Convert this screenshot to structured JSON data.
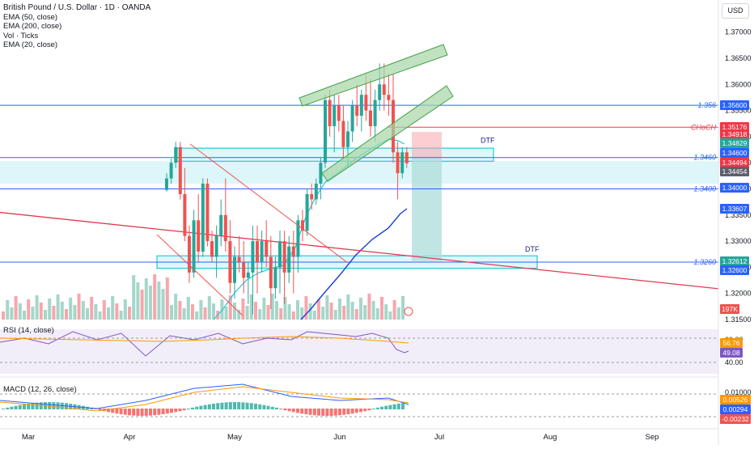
{
  "header": {
    "title": "British Pound / U.S. Dollar · 1D · OANDA",
    "indicators": [
      "EMA (50, close)",
      "EMA (200, close)",
      "Vol · Ticks",
      "EMA (20, close)"
    ],
    "currency_button": "USD"
  },
  "chart_data": {
    "type": "candlestick",
    "symbol": "GBPUSD",
    "timeframe": "1D",
    "x_tick_labels": [
      "Mar",
      "Apr",
      "May",
      "Jun",
      "Jul",
      "Aug",
      "Sep"
    ],
    "y_tick_labels": [
      "1.37000",
      "1.36500",
      "1.36000",
      "1.35500",
      "1.35000",
      "1.34500",
      "1.34000",
      "1.33500",
      "1.33000",
      "1.32500",
      "1.32000",
      "1.31500"
    ],
    "ylim": [
      1.315,
      1.373
    ],
    "price_lines": [
      {
        "value": 1.356,
        "label": "1.356",
        "color": "#2962ff"
      },
      {
        "value": 1.346,
        "label": "1.3460",
        "color": "#2962ff"
      },
      {
        "value": 1.34,
        "label": "1.3400",
        "color": "#2962ff"
      },
      {
        "value": 1.326,
        "label": "1.3260",
        "color": "#2962ff"
      }
    ],
    "choch_label": "CHoCH",
    "zone_labels": [
      "DTF",
      "DTF"
    ],
    "price_badges": [
      {
        "text": "1.35600",
        "color": "#2962ff"
      },
      {
        "text": "1.35176",
        "color": "#f23645"
      },
      {
        "text": "1.34918",
        "color": "#f23645"
      },
      {
        "text": "1.34829",
        "color": "#26a69a"
      },
      {
        "text": "1.34600",
        "color": "#2962ff"
      },
      {
        "text": "1.34494",
        "color": "#f23645"
      },
      {
        "text": "1.34454",
        "color": "#5d606b"
      },
      {
        "text": "1.34000",
        "color": "#2962ff"
      },
      {
        "text": "1.33607",
        "color": "#2962ff"
      },
      {
        "text": "1.32612",
        "color": "#26a69a"
      },
      {
        "text": "1.32600",
        "color": "#2962ff"
      }
    ],
    "volume_badge": "197K",
    "rsi": {
      "label": "RSI (14, close)",
      "y_tick_labels": [
        "60.00",
        "40.00"
      ],
      "badges": [
        "56.76",
        "49.08"
      ]
    },
    "macd": {
      "label": "MACD (12, 26, close)",
      "y_tick_labels": [
        "0.01000",
        "-0.00232"
      ],
      "badges": [
        "0.00526",
        "0.00294",
        "-0.00232"
      ]
    },
    "candles": [
      [
        1.3398,
        1.343,
        1.3395,
        1.342
      ],
      [
        1.342,
        1.3458,
        1.341,
        1.345
      ],
      [
        1.345,
        1.349,
        1.344,
        1.348
      ],
      [
        1.348,
        1.349,
        1.338,
        1.339
      ],
      [
        1.339,
        1.344,
        1.33,
        1.331
      ],
      [
        1.331,
        1.333,
        1.322,
        1.324
      ],
      [
        1.324,
        1.336,
        1.323,
        1.334
      ],
      [
        1.334,
        1.339,
        1.326,
        1.328
      ],
      [
        1.328,
        1.342,
        1.327,
        1.341
      ],
      [
        1.341,
        1.342,
        1.329,
        1.33
      ],
      [
        1.33,
        1.332,
        1.326,
        1.327
      ],
      [
        1.327,
        1.333,
        1.323,
        1.331
      ],
      [
        1.331,
        1.338,
        1.329,
        1.335
      ],
      [
        1.335,
        1.342,
        1.328,
        1.33
      ],
      [
        1.33,
        1.334,
        1.32,
        1.322
      ],
      [
        1.322,
        1.329,
        1.319,
        1.327
      ],
      [
        1.327,
        1.331,
        1.324,
        1.326
      ],
      [
        1.326,
        1.33,
        1.32,
        1.323
      ],
      [
        1.323,
        1.326,
        1.318,
        1.324
      ],
      [
        1.324,
        1.333,
        1.316,
        1.33
      ],
      [
        1.33,
        1.333,
        1.32,
        1.326
      ],
      [
        1.326,
        1.332,
        1.324,
        1.33
      ],
      [
        1.33,
        1.334,
        1.325,
        1.327
      ],
      [
        1.327,
        1.331,
        1.317,
        1.321
      ],
      [
        1.321,
        1.327,
        1.319,
        1.325
      ],
      [
        1.325,
        1.332,
        1.32,
        1.33
      ],
      [
        1.33,
        1.332,
        1.318,
        1.324
      ],
      [
        1.324,
        1.331,
        1.322,
        1.329
      ],
      [
        1.329,
        1.332,
        1.32,
        1.327
      ],
      [
        1.327,
        1.335,
        1.324,
        1.334
      ],
      [
        1.334,
        1.336,
        1.33,
        1.332
      ],
      [
        1.332,
        1.34,
        1.331,
        1.339
      ],
      [
        1.339,
        1.341,
        1.336,
        1.338
      ],
      [
        1.338,
        1.342,
        1.337,
        1.341
      ],
      [
        1.341,
        1.346,
        1.338,
        1.345
      ],
      [
        1.345,
        1.358,
        1.344,
        1.357
      ],
      [
        1.357,
        1.359,
        1.35,
        1.352
      ],
      [
        1.352,
        1.358,
        1.347,
        1.356
      ],
      [
        1.356,
        1.358,
        1.351,
        1.353
      ],
      [
        1.353,
        1.356,
        1.346,
        1.348
      ],
      [
        1.348,
        1.353,
        1.344,
        1.351
      ],
      [
        1.351,
        1.357,
        1.349,
        1.356
      ],
      [
        1.356,
        1.36,
        1.352,
        1.354
      ],
      [
        1.354,
        1.359,
        1.351,
        1.358
      ],
      [
        1.358,
        1.362,
        1.353,
        1.355
      ],
      [
        1.355,
        1.361,
        1.35,
        1.352
      ],
      [
        1.352,
        1.359,
        1.349,
        1.357
      ],
      [
        1.357,
        1.364,
        1.355,
        1.36
      ],
      [
        1.36,
        1.364,
        1.355,
        1.358
      ],
      [
        1.358,
        1.362,
        1.354,
        1.357
      ],
      [
        1.357,
        1.362,
        1.345,
        1.347
      ],
      [
        1.347,
        1.349,
        1.338,
        1.343
      ],
      [
        1.343,
        1.348,
        1.342,
        1.347
      ],
      [
        1.347,
        1.348,
        1.344,
        1.3449
      ]
    ]
  }
}
